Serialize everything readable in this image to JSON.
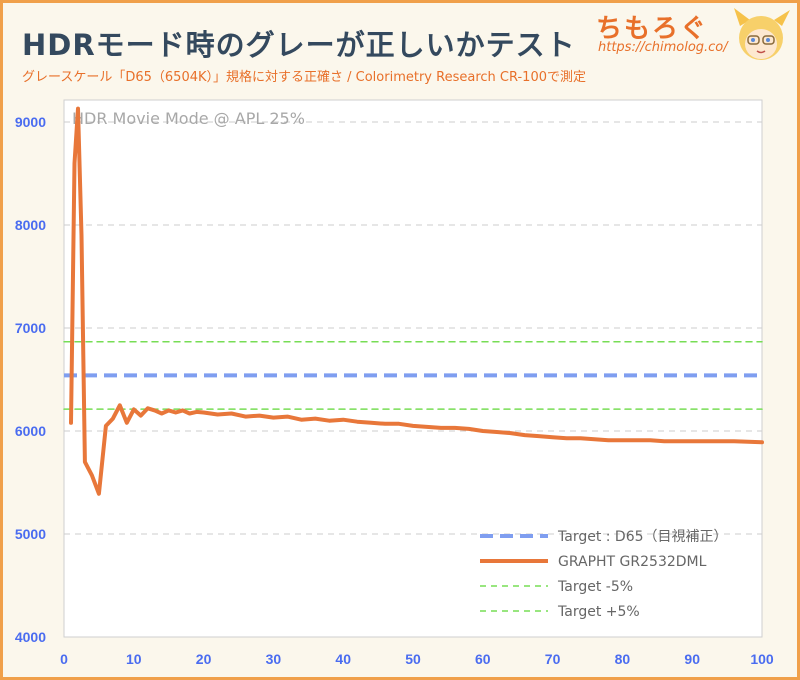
{
  "header": {
    "title": "HDRモード時のグレーが正しいかテスト",
    "subtitle": "グレースケール「D65（6504K）」規格に対する正確さ / Colorimetry Research CR-100で測定",
    "brand": "ちもろぐ",
    "brand_url": "https://chimolog.co/"
  },
  "chart_data": {
    "type": "line",
    "annotation": "HDR Movie Mode @ APL 25%",
    "xlim": [
      0,
      100
    ],
    "ylim": [
      4000,
      9000
    ],
    "x_ticks": [
      0,
      10,
      20,
      30,
      40,
      50,
      60,
      70,
      80,
      90,
      100
    ],
    "y_ticks": [
      4000,
      5000,
      6000,
      7000,
      8000,
      9000
    ],
    "grid": "horizontal",
    "legend_position": "bottom-right",
    "series": [
      {
        "name": "Target : D65（目視補正）",
        "style": "dashed",
        "color": "#7f9ef0",
        "x": [
          0,
          100
        ],
        "y": [
          6540,
          6540
        ]
      },
      {
        "name": "GRAPHT GR2532DML",
        "style": "solid",
        "color": "#e8773a",
        "x": [
          1,
          1.5,
          2,
          2.5,
          3,
          4,
          5,
          6,
          7,
          8,
          9,
          10,
          11,
          12,
          13,
          14,
          15,
          16,
          17,
          18,
          19,
          20,
          22,
          24,
          26,
          28,
          30,
          32,
          34,
          36,
          38,
          40,
          42,
          44,
          46,
          48,
          50,
          52,
          54,
          56,
          58,
          60,
          62,
          64,
          66,
          68,
          70,
          72,
          74,
          76,
          78,
          80,
          82,
          84,
          86,
          88,
          90,
          92,
          94,
          96,
          98,
          100
        ],
        "y": [
          6080,
          8600,
          9130,
          7900,
          5700,
          5570,
          5390,
          6050,
          6120,
          6250,
          6080,
          6210,
          6150,
          6220,
          6200,
          6170,
          6200,
          6180,
          6200,
          6170,
          6185,
          6180,
          6160,
          6170,
          6140,
          6150,
          6130,
          6140,
          6110,
          6120,
          6100,
          6110,
          6090,
          6080,
          6070,
          6070,
          6050,
          6040,
          6030,
          6030,
          6020,
          6000,
          5990,
          5980,
          5960,
          5950,
          5940,
          5930,
          5930,
          5920,
          5910,
          5910,
          5910,
          5910,
          5900,
          5900,
          5900,
          5900,
          5900,
          5900,
          5895,
          5890
        ]
      },
      {
        "name": "Target -5%",
        "style": "dashed",
        "color": "#77dd55",
        "x": [
          0,
          100
        ],
        "y": [
          6213,
          6213
        ]
      },
      {
        "name": "Target +5%",
        "style": "dashed",
        "color": "#77dd55",
        "x": [
          0,
          100
        ],
        "y": [
          6867,
          6867
        ]
      }
    ]
  }
}
